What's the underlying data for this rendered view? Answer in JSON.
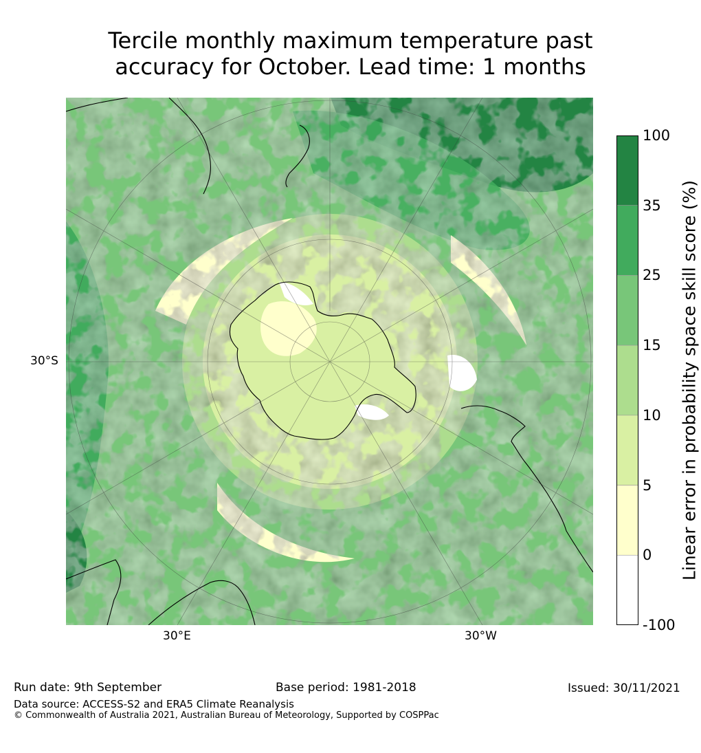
{
  "title": {
    "line1": "Tercile monthly maximum temperature past",
    "line2": "accuracy for October. Lead time: 1 months"
  },
  "map": {
    "projection": "south polar stereographic",
    "labels": {
      "lat_left": "30°S",
      "lon_bottom_left": "30°E",
      "lon_bottom_right": "30°W"
    }
  },
  "colorbar": {
    "title": "Linear error in probability space skill score (%)",
    "ticks": [
      "100",
      "35",
      "25",
      "15",
      "10",
      "5",
      "0",
      "-100"
    ],
    "bins": [
      {
        "from": "35",
        "to": "100",
        "color": "#238443"
      },
      {
        "from": "25",
        "to": "35",
        "color": "#41ab5d"
      },
      {
        "from": "15",
        "to": "25",
        "color": "#78c679"
      },
      {
        "from": "10",
        "to": "15",
        "color": "#addd8e"
      },
      {
        "from": "5",
        "to": "10",
        "color": "#d9f0a3"
      },
      {
        "from": "0",
        "to": "5",
        "color": "#ffffcc"
      },
      {
        "from": "-100",
        "to": "0",
        "color": "#ffffff"
      }
    ]
  },
  "footer": {
    "run_date": "Run date: 9th September",
    "base_period": "Base period: 1981-2018",
    "issued": "Issued: 30/11/2021",
    "data_source": "Data source: ACCESS-S2 and ERA5 Climate Reanalysis",
    "copyright": "© Commonwealth of Australia 2021, Australian Bureau of Meteorology, Supported by COSPPac"
  }
}
